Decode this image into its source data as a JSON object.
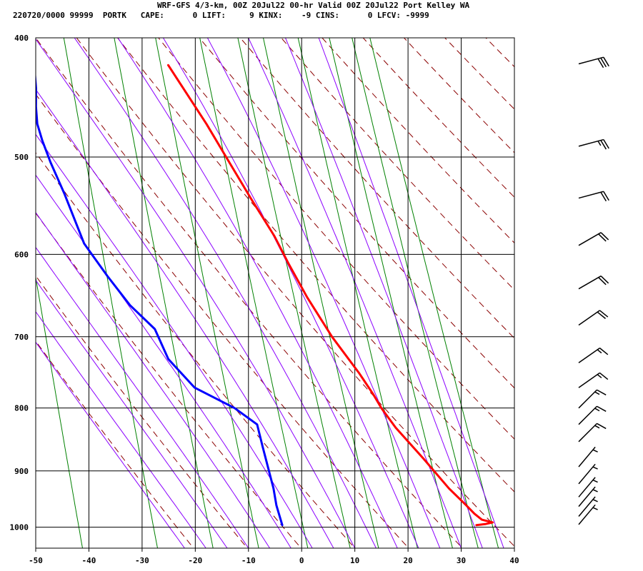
{
  "header": {
    "line1": "WRF-GFS 4/3-km, 00Z 20Jul22 00-hr Valid 00Z 20Jul22 Port Kelley WA",
    "line2": "220720/0000 99999  PORTK   CAPE:      0 LIFT:     9 KINX:    -9 CINS:      0 LFCV: -9999"
  },
  "colors": {
    "temperature": "#ff0000",
    "dewpoint": "#0000ff",
    "isotherm": "#000000",
    "dry_adiabat": "#8b0000",
    "moist_adiabat": "#8b00ff",
    "mixing_ratio": "#008000"
  },
  "chart_data": {
    "type": "line",
    "subtype": "skew-T log-P sounding",
    "x_axis": {
      "label": "",
      "range": [
        -50,
        40
      ],
      "ticks": [
        -50,
        -40,
        -30,
        -20,
        -10,
        0,
        10,
        20,
        30,
        40
      ]
    },
    "y_axis": {
      "label": "",
      "scale": "log",
      "range": [
        1040,
        400
      ],
      "ticks": [
        400,
        500,
        600,
        700,
        800,
        900,
        1000
      ]
    },
    "grid": true,
    "series": [
      {
        "key": "temperature",
        "points": [
          {
            "p": 421,
            "t": -17.8
          },
          {
            "p": 470,
            "t": -11.5
          },
          {
            "p": 500,
            "t": -8.3
          },
          {
            "p": 540,
            "t": -4.3
          },
          {
            "p": 580,
            "t": -0.4
          },
          {
            "p": 610,
            "t": 1.8
          },
          {
            "p": 650,
            "t": 4.8
          },
          {
            "p": 700,
            "t": 8.9
          },
          {
            "p": 750,
            "t": 13.5
          },
          {
            "p": 780,
            "t": 15.8
          },
          {
            "p": 800,
            "t": 17.1
          },
          {
            "p": 830,
            "t": 19.5
          },
          {
            "p": 880,
            "t": 24.3
          },
          {
            "p": 930,
            "t": 28.6
          },
          {
            "p": 960,
            "t": 31.6
          },
          {
            "p": 975,
            "t": 33.0
          },
          {
            "p": 986,
            "t": 34.3
          },
          {
            "p": 991,
            "t": 36.3
          },
          {
            "p": 994,
            "t": 35.0
          },
          {
            "p": 996,
            "t": 33.2
          }
        ]
      },
      {
        "key": "dewpoint",
        "points": [
          {
            "p": 421,
            "t": -43.0
          },
          {
            "p": 440,
            "t": -43.0
          },
          {
            "p": 455,
            "t": -43.3
          },
          {
            "p": 470,
            "t": -43.3
          },
          {
            "p": 485,
            "t": -42.6
          },
          {
            "p": 505,
            "t": -41.4
          },
          {
            "p": 535,
            "t": -39.3
          },
          {
            "p": 588,
            "t": -36.3
          },
          {
            "p": 625,
            "t": -32.4
          },
          {
            "p": 660,
            "t": -28.6
          },
          {
            "p": 690,
            "t": -24.3
          },
          {
            "p": 730,
            "t": -22.2
          },
          {
            "p": 770,
            "t": -17.7
          },
          {
            "p": 800,
            "t": -10.5
          },
          {
            "p": 825,
            "t": -6.5
          },
          {
            "p": 860,
            "t": -5.8
          },
          {
            "p": 930,
            "t": -4.4
          },
          {
            "p": 960,
            "t": -4.1
          },
          {
            "p": 996,
            "t": -3.3
          }
        ]
      }
    ],
    "wind_barbs": [
      {
        "p": 420,
        "dir": 255,
        "speed": 30
      },
      {
        "p": 490,
        "dir": 255,
        "speed": 25
      },
      {
        "p": 540,
        "dir": 255,
        "speed": 20
      },
      {
        "p": 590,
        "dir": 240,
        "speed": 20
      },
      {
        "p": 640,
        "dir": 240,
        "speed": 20
      },
      {
        "p": 685,
        "dir": 235,
        "speed": 20
      },
      {
        "p": 735,
        "dir": 235,
        "speed": 15
      },
      {
        "p": 770,
        "dir": 235,
        "speed": 15
      },
      {
        "p": 800,
        "dir": 225,
        "speed": 15
      },
      {
        "p": 825,
        "dir": 225,
        "speed": 15
      },
      {
        "p": 852,
        "dir": 225,
        "speed": 15
      },
      {
        "p": 893,
        "dir": 220,
        "speed": 5
      },
      {
        "p": 922,
        "dir": 220,
        "speed": 5
      },
      {
        "p": 945,
        "dir": 220,
        "speed": 5
      },
      {
        "p": 962,
        "dir": 220,
        "speed": 5
      },
      {
        "p": 980,
        "dir": 220,
        "speed": 5
      },
      {
        "p": 995,
        "dir": 220,
        "speed": 5
      }
    ]
  }
}
